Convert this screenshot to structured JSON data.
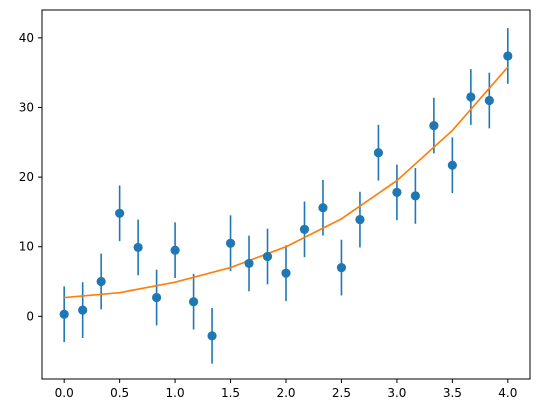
{
  "chart_data": {
    "type": "scatter",
    "title": "",
    "xlabel": "",
    "ylabel": "",
    "xlim": [
      -0.2,
      4.2
    ],
    "ylim": [
      -9,
      44
    ],
    "x_ticks": [
      0.0,
      0.5,
      1.0,
      1.5,
      2.0,
      2.5,
      3.0,
      3.5,
      4.0
    ],
    "x_tick_labels": [
      "0.0",
      "0.5",
      "1.0",
      "1.5",
      "2.0",
      "2.5",
      "3.0",
      "3.5",
      "4.0"
    ],
    "y_ticks": [
      0,
      10,
      20,
      30,
      40
    ],
    "y_tick_labels": [
      "0",
      "10",
      "20",
      "30",
      "40"
    ],
    "grid": false,
    "legend": "none",
    "series": [
      {
        "kind": "errorbar-points",
        "color": "#1f77b4",
        "x": [
          0.0,
          0.1667,
          0.3333,
          0.5,
          0.6667,
          0.8333,
          1.0,
          1.1667,
          1.3333,
          1.5,
          1.6667,
          1.8333,
          2.0,
          2.1667,
          2.3333,
          2.5,
          2.6667,
          2.8333,
          3.0,
          3.1667,
          3.3333,
          3.5,
          3.6667,
          3.8333,
          4.0
        ],
        "y": [
          0.3,
          0.9,
          5.0,
          14.8,
          9.9,
          2.7,
          9.5,
          2.1,
          -2.8,
          10.5,
          7.6,
          8.6,
          6.2,
          12.5,
          15.6,
          7.0,
          13.9,
          23.5,
          17.8,
          17.3,
          27.4,
          21.7,
          31.5,
          31.0,
          37.4
        ],
        "yerr": 4.0
      },
      {
        "kind": "line",
        "color": "#ff7f0e",
        "x": [
          0.0,
          0.5,
          1.0,
          1.5,
          2.0,
          2.5,
          3.0,
          3.5,
          4.0
        ],
        "y": [
          2.7,
          3.4,
          4.9,
          7.0,
          10.0,
          14.0,
          19.5,
          26.7,
          35.8
        ]
      }
    ]
  }
}
